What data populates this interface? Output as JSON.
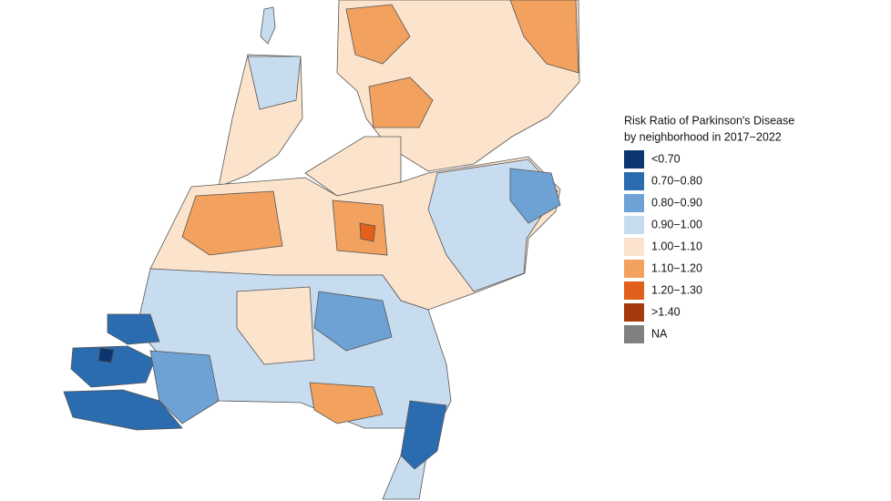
{
  "legend": {
    "title_lines": [
      "Risk Ratio of Parkinson's Disease",
      "by neighborhood in 2017−2022"
    ],
    "items": [
      {
        "label": "<0.70",
        "color": "#0c3670"
      },
      {
        "label": "0.70−0.80",
        "color": "#2b6cb0"
      },
      {
        "label": "0.80−0.90",
        "color": "#6fa2d4"
      },
      {
        "label": "0.90−1.00",
        "color": "#c8dcef"
      },
      {
        "label": "1.00−1.10",
        "color": "#fce3cc"
      },
      {
        "label": "1.10−1.20",
        "color": "#f2a25e"
      },
      {
        "label": "1.20−1.30",
        "color": "#e2601c"
      },
      {
        "label": ">1.40",
        "color": "#a63a0c"
      },
      {
        "label": "NA",
        "color": "#808080"
      }
    ]
  }
}
